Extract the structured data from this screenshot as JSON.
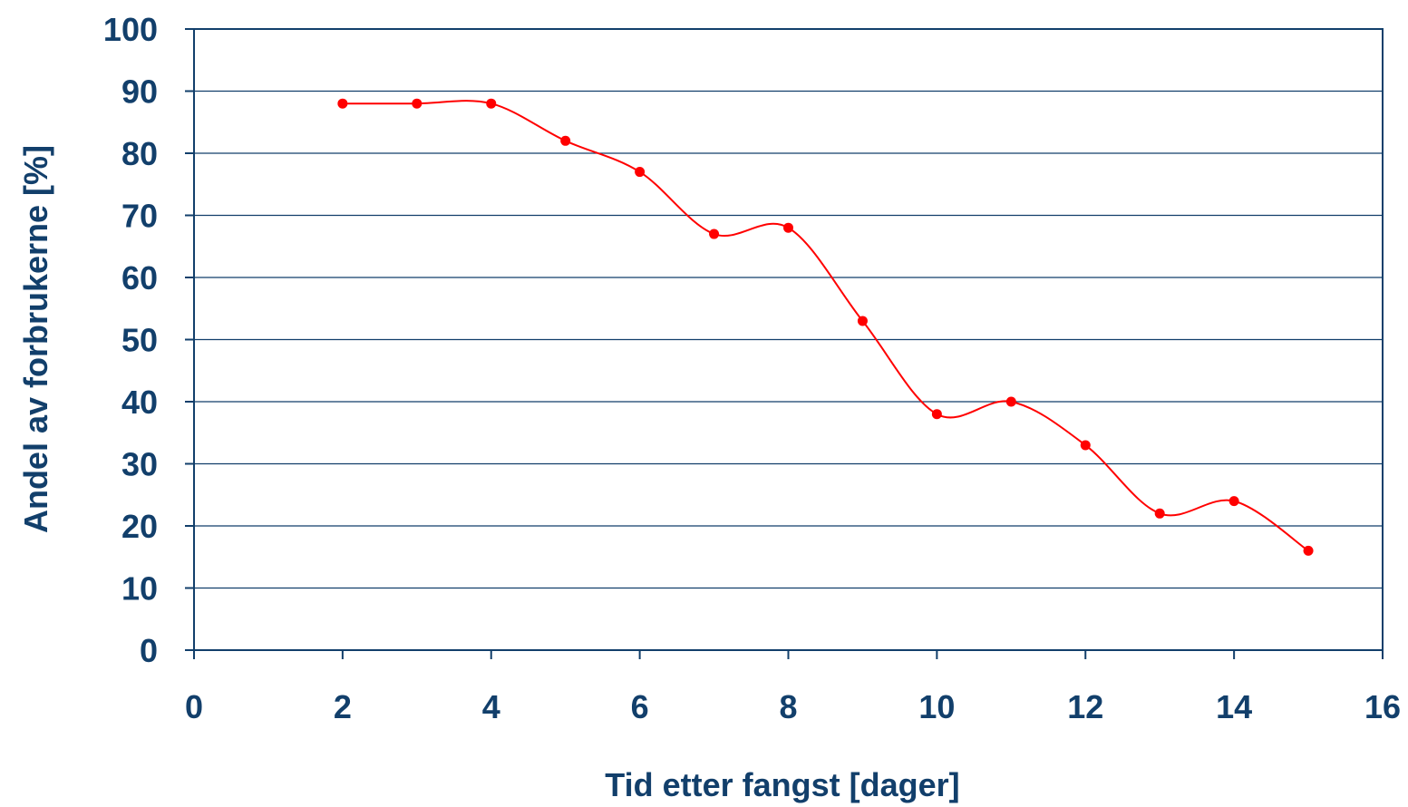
{
  "chart_data": {
    "type": "line",
    "title": "",
    "xlabel": "Tid etter fangst [dager]",
    "ylabel": "Andel av forbrukerne [%]",
    "xlim": [
      0,
      16
    ],
    "ylim": [
      0,
      100
    ],
    "xticks": [
      "0",
      "2",
      "4",
      "6",
      "8",
      "10",
      "12",
      "14",
      "16"
    ],
    "yticks": [
      "0",
      "10",
      "20",
      "30",
      "40",
      "50",
      "60",
      "70",
      "80",
      "90",
      "100"
    ],
    "grid": "horizontal",
    "legend": "none",
    "smooth": true,
    "series": [
      {
        "color": "#ff0000",
        "x": [
          2,
          3,
          4,
          5,
          6,
          7,
          8,
          9,
          10,
          11,
          12,
          13,
          14,
          15
        ],
        "y": [
          88,
          88,
          88,
          82,
          77,
          67,
          68,
          53,
          38,
          40,
          33,
          22,
          24,
          16
        ]
      }
    ]
  },
  "colors": {
    "axis": "#123f6b",
    "grid": "#123f6b",
    "series": "#ff0000"
  }
}
